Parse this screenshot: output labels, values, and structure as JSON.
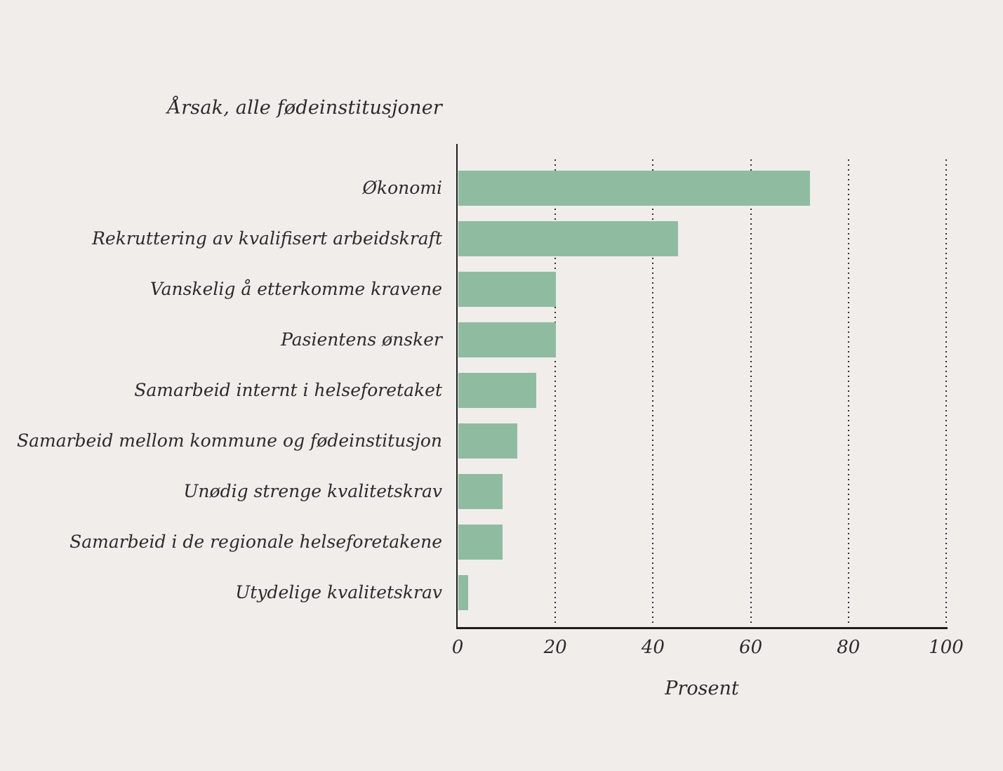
{
  "figure": {
    "background_color": "#f0edeb",
    "text_color": "#2e2a2b",
    "axis_color": "#1f1d1e",
    "bar_color": "#8fbca1",
    "gridline_color": "#2f2d2d"
  },
  "chart_data": {
    "type": "bar",
    "orientation": "horizontal",
    "title": "Årsak, alle fødeinstitusjoner",
    "xlabel": "Prosent",
    "ylabel": "",
    "categories": [
      "Økonomi",
      "Rekruttering av kvalifisert arbeidskraft",
      "Vanskelig å etterkomme kravene",
      "Pasientens ønsker",
      "Samarbeid internt i helseforetaket",
      "Samarbeid mellom kommune og fødeinstitusjon",
      "Unødig strenge kvalitetskrav",
      "Samarbeid i de regionale helseforetakene",
      "Utydelige kvalitetskrav"
    ],
    "values": [
      72,
      45,
      20,
      20,
      16,
      12,
      9,
      9,
      2
    ],
    "xlim": [
      0,
      100
    ],
    "xticks": [
      0,
      20,
      40,
      60,
      80,
      100
    ],
    "grid": "dotted-vertical-at-xticks",
    "legend": "none",
    "bar_value_labels": "none"
  }
}
